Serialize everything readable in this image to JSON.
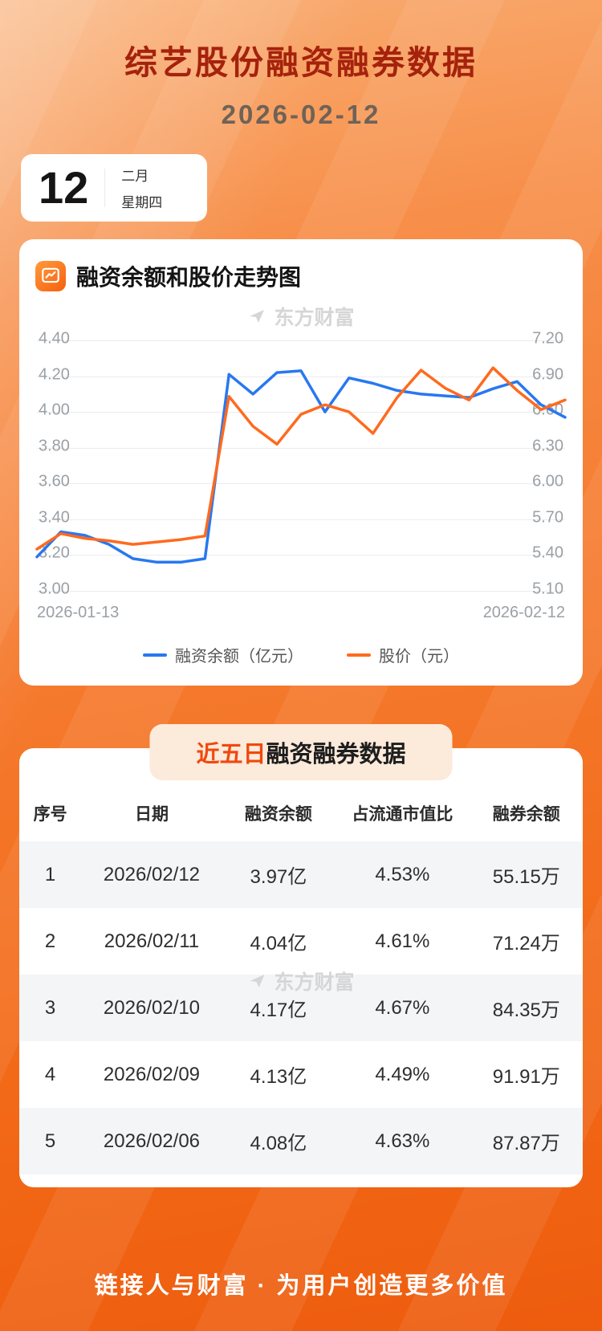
{
  "header": {
    "title": "综艺股份融资融券数据",
    "date": "2026-02-12"
  },
  "calendar": {
    "day": "12",
    "month": "二月",
    "weekday": "星期四"
  },
  "watermark": "东方财富",
  "chart_section": {
    "title": "融资余额和股价走势图"
  },
  "chart_data": {
    "type": "line",
    "title": "融资余额和股价走势图",
    "x_start_label": "2026-01-13",
    "x_end_label": "2026-02-12",
    "grid": true,
    "legend_position": "bottom",
    "left_axis": {
      "min": 3.0,
      "max": 4.4,
      "ticks": [
        "4.40",
        "4.20",
        "4.00",
        "3.80",
        "3.60",
        "3.40",
        "3.20",
        "3.00"
      ]
    },
    "right_axis": {
      "min": 5.1,
      "max": 7.2,
      "ticks": [
        "7.20",
        "6.90",
        "6.60",
        "6.30",
        "6.00",
        "5.70",
        "5.40",
        "5.10"
      ]
    },
    "series": [
      {
        "name": "融资余额（亿元）",
        "axis": "left",
        "color": "#2878f0",
        "values": [
          3.19,
          3.33,
          3.31,
          3.26,
          3.18,
          3.16,
          3.16,
          3.18,
          4.21,
          4.1,
          4.22,
          4.23,
          4.0,
          4.19,
          4.16,
          4.12,
          4.1,
          4.09,
          4.08,
          4.13,
          4.17,
          4.04,
          3.97
        ]
      },
      {
        "name": "股价（元）",
        "axis": "right",
        "color": "#ff6a1e",
        "values": [
          5.45,
          5.58,
          5.54,
          5.52,
          5.49,
          5.51,
          5.53,
          5.56,
          6.73,
          6.48,
          6.33,
          6.58,
          6.66,
          6.6,
          6.42,
          6.72,
          6.95,
          6.8,
          6.7,
          6.97,
          6.78,
          6.62,
          6.7
        ]
      }
    ]
  },
  "table_section": {
    "title_highlight": "近五日",
    "title_rest": "融资融券数据",
    "columns": [
      "序号",
      "日期",
      "融资余额",
      "占流通市值比",
      "融券余额"
    ],
    "rows": [
      [
        "1",
        "2026/02/12",
        "3.97亿",
        "4.53%",
        "55.15万"
      ],
      [
        "2",
        "2026/02/11",
        "4.04亿",
        "4.61%",
        "71.24万"
      ],
      [
        "3",
        "2026/02/10",
        "4.17亿",
        "4.67%",
        "84.35万"
      ],
      [
        "4",
        "2026/02/09",
        "4.13亿",
        "4.49%",
        "91.91万"
      ],
      [
        "5",
        "2026/02/06",
        "4.08亿",
        "4.63%",
        "87.87万"
      ]
    ]
  },
  "footer": {
    "slogan": "链接人与财富 · 为用户创造更多价值"
  },
  "colors": {
    "title_red": "#a5220d",
    "highlight_red": "#f1480c",
    "line_blue": "#2878f0",
    "line_orange": "#ff6a1e",
    "background_orange": "#f26a18",
    "stripe_gray": "#f3f5f7"
  }
}
